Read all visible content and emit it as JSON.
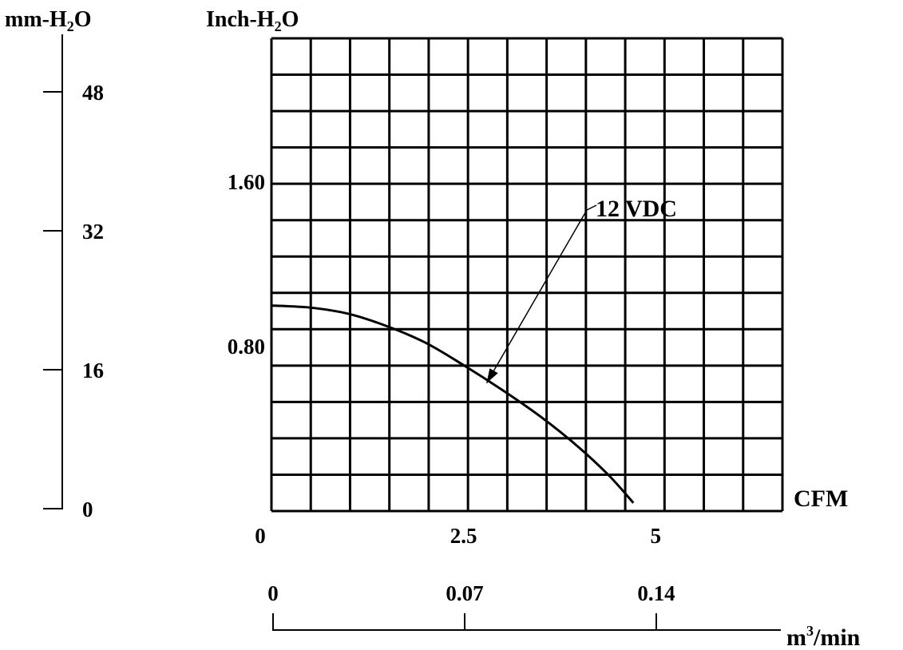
{
  "chart_data": {
    "type": "line",
    "title": "",
    "series": [
      {
        "name": "12 VDC",
        "x": [
          0,
          0.5,
          1.0,
          1.5,
          2.0,
          2.5,
          3.0,
          3.5,
          4.0,
          4.4,
          4.71
        ],
        "y": [
          1.0,
          0.99,
          0.96,
          0.9,
          0.82,
          0.71,
          0.59,
          0.46,
          0.31,
          0.17,
          0.04
        ]
      }
    ],
    "annotation": {
      "text": "12 VDC",
      "series": "12 VDC",
      "at_x": 2.8
    },
    "x_axis": {
      "label": "CFM",
      "ticks": [
        "0",
        "2.5",
        "5"
      ],
      "tick_values": [
        0,
        2.5,
        5
      ],
      "range": [
        0,
        6.65
      ],
      "grid_divisions": 13
    },
    "y_axis": {
      "label_main": "Inch-H",
      "label_sub": "2",
      "label_tail": "O",
      "ticks": [
        "0.80",
        "1.60"
      ],
      "tick_values": [
        0.8,
        1.6
      ],
      "range": [
        0,
        2.3
      ],
      "grid_divisions": 13
    },
    "secondary_y_axis": {
      "label_main": "mm-H",
      "label_sub": "2",
      "label_tail": "O",
      "ticks": [
        "0",
        "16",
        "32",
        "48"
      ],
      "tick_values": [
        0,
        16,
        32,
        48
      ]
    },
    "secondary_x_axis": {
      "label_main": "m",
      "label_sup": "3",
      "label_tail": "/min",
      "ticks": [
        "0",
        "0.07",
        "0.14"
      ],
      "tick_values": [
        0,
        0.07,
        0.14
      ]
    },
    "grid": true,
    "legend": "none"
  }
}
